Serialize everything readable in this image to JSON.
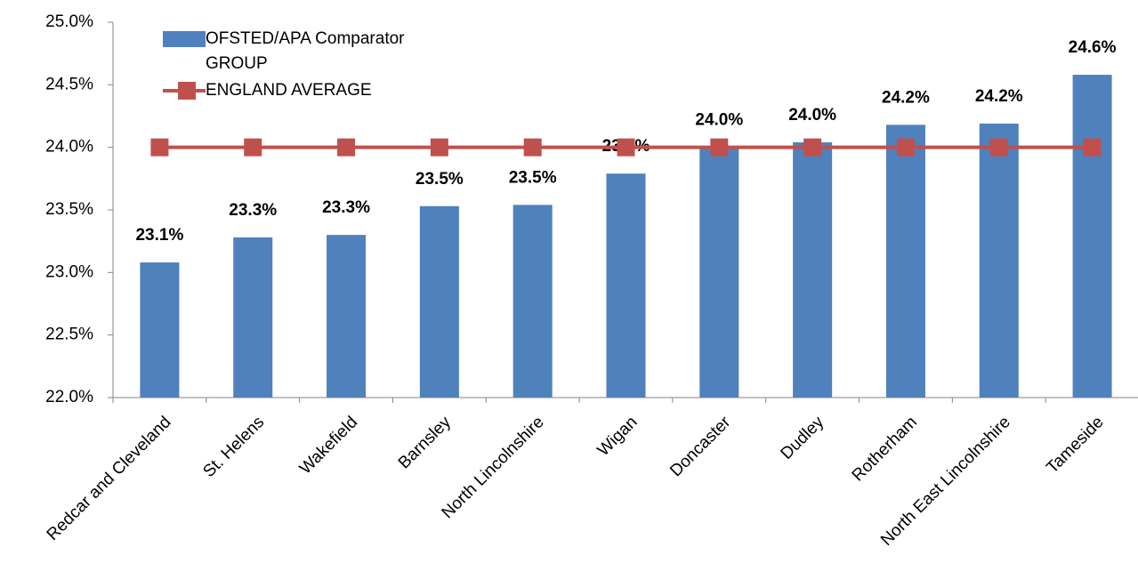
{
  "chart_data": {
    "type": "bar",
    "categories": [
      "Redcar and Cleveland",
      "St. Helens",
      "Wakefield",
      "Barnsley",
      "North Lincolnshire",
      "Wigan",
      "Doncaster",
      "Dudley",
      "Rotherham",
      "North East Lincolnshire",
      "Tameside"
    ],
    "series": [
      {
        "name": "OFSTED/APA Comparator GROUP",
        "type": "bar",
        "color": "#4f81bd",
        "values": [
          23.08,
          23.28,
          23.3,
          23.53,
          23.54,
          23.79,
          24.0,
          24.04,
          24.18,
          24.19,
          24.58
        ],
        "value_labels": [
          "23.1%",
          "23.3%",
          "23.3%",
          "23.5%",
          "23.5%",
          "23.8%",
          "24.0%",
          "24.0%",
          "24.2%",
          "24.2%",
          "24.6%"
        ]
      },
      {
        "name": "ENGLAND AVERAGE",
        "type": "line",
        "color": "#c0504d",
        "values": [
          24.0,
          24.0,
          24.0,
          24.0,
          24.0,
          24.0,
          24.0,
          24.0,
          24.0,
          24.0,
          24.0
        ]
      }
    ],
    "ylim": [
      22,
      25
    ],
    "yticks": [
      {
        "value": 22,
        "label": "22.0%"
      },
      {
        "value": 22.5,
        "label": "22.5%"
      },
      {
        "value": 23,
        "label": "23.0%"
      },
      {
        "value": 23.5,
        "label": "23.5%"
      },
      {
        "value": 24,
        "label": "24.0%"
      },
      {
        "value": 24.5,
        "label": "24.5%"
      },
      {
        "value": 25,
        "label": "25.0%"
      }
    ],
    "legend": "top-left"
  }
}
